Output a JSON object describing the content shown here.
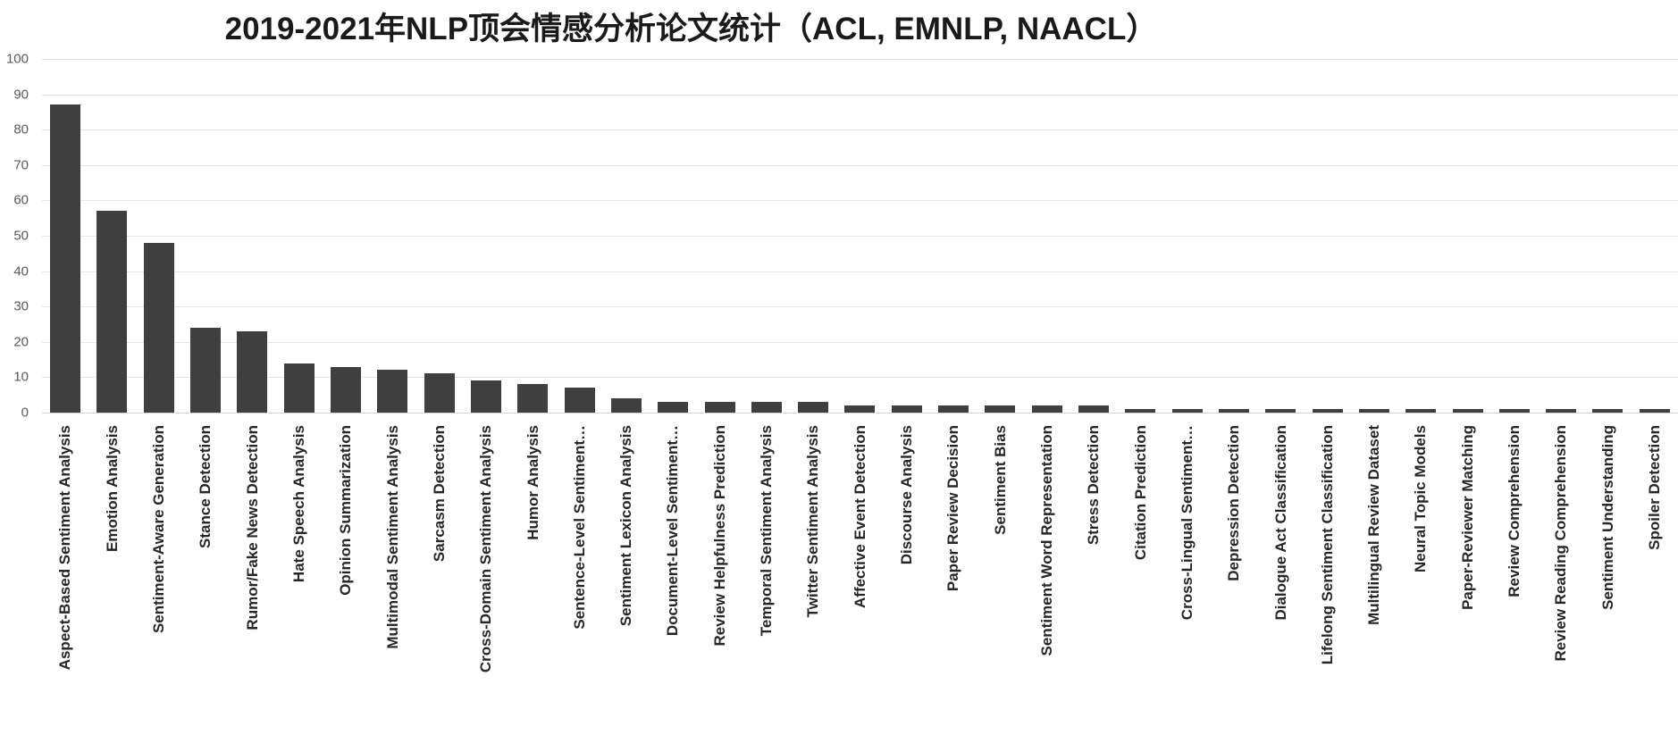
{
  "chart_data": {
    "type": "bar",
    "title": "2019-2021年NLP顶会情感分析论文统计（ACL, EMNLP, NAACL）",
    "categories": [
      "Aspect-Based Sentiment Analysis",
      "Emotion Analysis",
      "Sentiment-Aware Generation",
      "Stance Detection",
      "Rumor/Fake News Detection",
      "Hate Speech Analysis",
      "Opinion Summarization",
      "Multimodal Sentiment Analysis",
      "Sarcasm Detection",
      "Cross-Domain Sentiment Analysis",
      "Humor Analysis",
      "Sentence-Level Sentiment…",
      "Sentiment Lexicon Analysis",
      "Document-Level Sentiment…",
      "Review Helpfulness Prediction",
      "Temporal Sentiment Analysis",
      "Twitter Sentiment Analysis",
      "Affective Event Detection",
      "Discourse Analysis",
      "Paper Review Decision",
      "Sentiment Bias",
      "Sentiment Word Representation",
      "Stress Detection",
      "Citation Prediction",
      "Cross-Lingual Sentiment…",
      "Depression Detection",
      "Dialogue Act Classification",
      "Lifelong Sentiment Classification",
      "Multilingual Review Dataset",
      "Neural Topic Models",
      "Paper-Reviewer Matching",
      "Review Comprehension",
      "Review Reading Comprehension",
      "Sentiment Understanding",
      "Spoiler Detection"
    ],
    "values": [
      87,
      57,
      48,
      24,
      23,
      14,
      13,
      12,
      11,
      9,
      8,
      7,
      4,
      3,
      3,
      3,
      3,
      2,
      2,
      2,
      2,
      2,
      2,
      1,
      1,
      1,
      1,
      1,
      1,
      1,
      1,
      1,
      1,
      1,
      1
    ],
    "xlabel": "",
    "ylabel": "",
    "ylim": [
      0,
      100
    ],
    "yticks": [
      0,
      10,
      20,
      30,
      40,
      50,
      60,
      70,
      80,
      90,
      100
    ],
    "grid": "horizontal",
    "legend": "none",
    "colors": {
      "bar": "#3f3f3f",
      "gridline": "#e4e4e4",
      "baseline": "#d4d4d4",
      "y_tick_text": "#595959",
      "x_tick_text": "#262626",
      "title_text": "#1a1a1a",
      "background": "#ffffff"
    }
  }
}
